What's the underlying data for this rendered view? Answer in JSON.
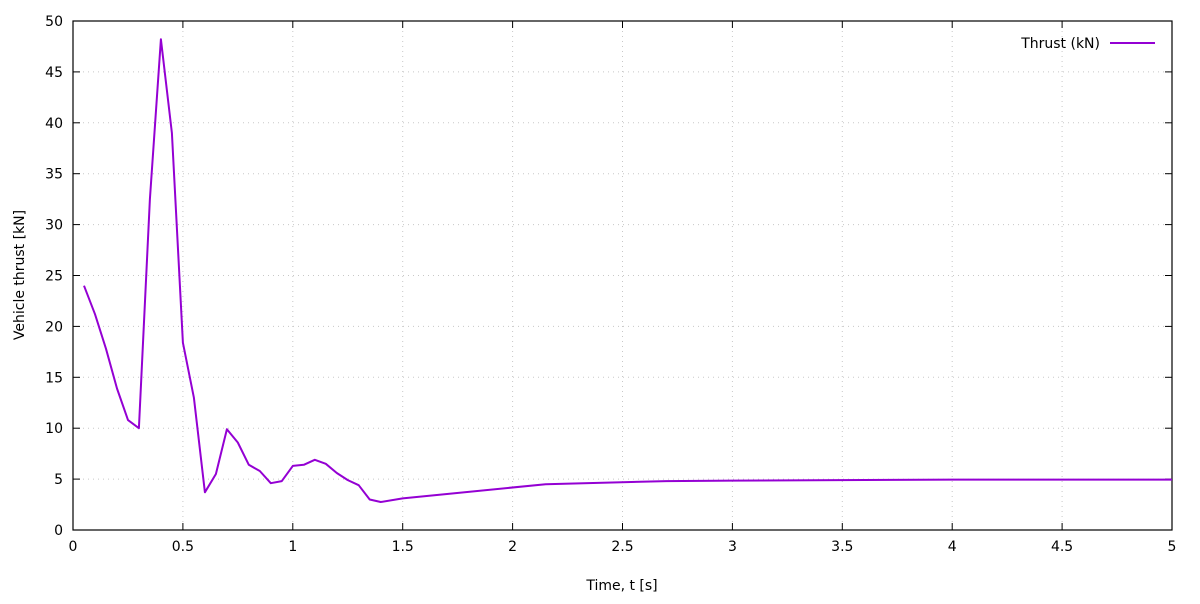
{
  "chart_data": {
    "type": "line",
    "title": "",
    "xlabel": "Time, t [s]",
    "ylabel": "Vehicle thrust [kN]",
    "xlim": [
      0,
      5
    ],
    "ylim": [
      0,
      50
    ],
    "xticks": [
      "0",
      "0.5",
      "1",
      "1.5",
      "2",
      "2.5",
      "3",
      "3.5",
      "4",
      "4.5",
      "5"
    ],
    "yticks": [
      "0",
      "5",
      "10",
      "15",
      "20",
      "25",
      "30",
      "35",
      "40",
      "45",
      "50"
    ],
    "grid": true,
    "legend_position": "top-right",
    "series": [
      {
        "name": "Thrust (kN)",
        "color": "#9400d3",
        "x": [
          0.05,
          0.1,
          0.15,
          0.2,
          0.25,
          0.3,
          0.35,
          0.4,
          0.45,
          0.5,
          0.55,
          0.6,
          0.65,
          0.7,
          0.75,
          0.8,
          0.85,
          0.9,
          0.95,
          1.0,
          1.05,
          1.1,
          1.15,
          1.2,
          1.25,
          1.3,
          1.35,
          1.4,
          1.5,
          2.15,
          2.7,
          3.0,
          4.0,
          5.0
        ],
        "y": [
          24.0,
          21.2,
          17.8,
          13.9,
          10.8,
          10.0,
          32.5,
          48.2,
          39.0,
          18.4,
          13.0,
          3.7,
          5.5,
          9.9,
          8.6,
          6.4,
          5.8,
          4.6,
          4.8,
          6.3,
          6.4,
          6.9,
          6.5,
          5.6,
          4.9,
          4.4,
          3.0,
          2.75,
          3.1,
          4.5,
          4.8,
          4.85,
          4.95,
          4.95
        ]
      }
    ]
  }
}
